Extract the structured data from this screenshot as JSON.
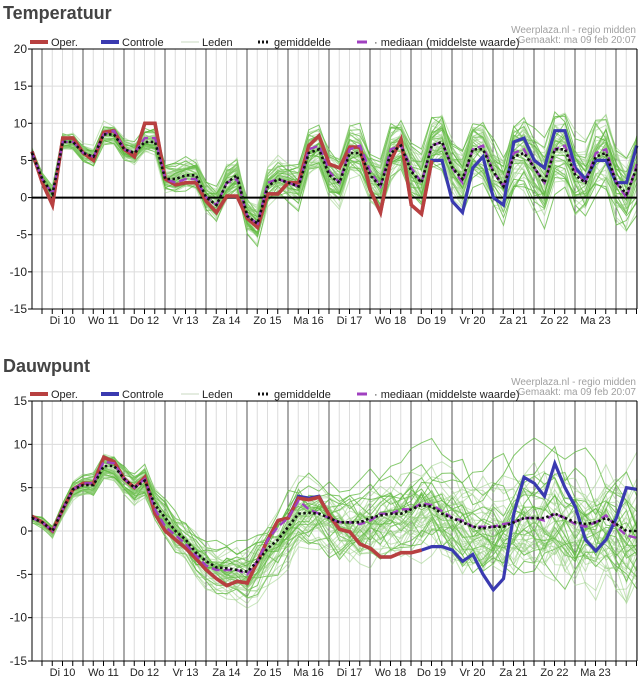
{
  "chart_data": [
    {
      "type": "line",
      "title": "Temperatuur",
      "ylim": [
        -15,
        20
      ],
      "yticks": [
        20,
        15,
        10,
        5,
        0,
        -5,
        -10,
        -15
      ],
      "x_step_hours": 6,
      "x_start": "ma 09 feb 18:00",
      "day_labels": [
        "Di 10",
        "Wo 11",
        "Do 12",
        "Vr 13",
        "Za 14",
        "Zo 15",
        "Ma 16",
        "Di 17",
        "Wo 18",
        "Do 19",
        "Vr 20",
        "Za 21",
        "Zo 22",
        "Ma 23"
      ],
      "grid": true,
      "legend": {
        "placement": "top",
        "items": [
          {
            "key": "oper",
            "label": "Oper.",
            "color": "#b84040",
            "style": "solid-thick"
          },
          {
            "key": "controle",
            "label": "Controle",
            "color": "#3a3ab0",
            "style": "solid-thick"
          },
          {
            "key": "leden",
            "label": "Leden",
            "color": "#c8d8c0",
            "style": "solid-thin"
          },
          {
            "key": "gemiddelde",
            "label": "gemiddelde",
            "color": "#111111",
            "style": "dotted"
          },
          {
            "key": "mediaan",
            "label": "mediaan (middelste waarde)",
            "color": "#a040c0",
            "style": "dashed"
          }
        ]
      },
      "credit": "Weerplaza.nl - regio midden",
      "made": "Gemaakt: ma 09 feb 20:07",
      "series": [
        {
          "name": "Oper.",
          "key": "oper",
          "values": [
            6.2,
            2,
            -1,
            8,
            8,
            6,
            5,
            8.8,
            9,
            6.5,
            5.5,
            10,
            10,
            2.5,
            1.7,
            2,
            2,
            -0.5,
            -2,
            0.2,
            0.2,
            -2.8,
            -4,
            0.5,
            0.5,
            2,
            2,
            7,
            8.3,
            4.5,
            4,
            6.8,
            6.8,
            1,
            -2,
            5,
            7.8,
            -1,
            -2.2,
            5
          ]
        },
        {
          "name": "Controle",
          "key": "controle",
          "values": [
            6.2,
            2,
            -1,
            8,
            8,
            6,
            5,
            8.8,
            9,
            6.5,
            5.5,
            10,
            10,
            2.5,
            1.7,
            2,
            2,
            -0.5,
            -2,
            0.2,
            0.2,
            -2.8,
            -4,
            0.5,
            0.5,
            2,
            2,
            7,
            8.3,
            4.5,
            4,
            6.8,
            6.8,
            1,
            -2,
            5,
            7.8,
            -1,
            -2.2,
            5,
            5,
            -0.5,
            -2,
            4,
            5.5,
            0,
            -1,
            7.5,
            8,
            5,
            4,
            9,
            9,
            4,
            2.5,
            5,
            5,
            2,
            2,
            7
          ]
        },
        {
          "name": "gemiddelde",
          "key": "gemiddelde",
          "values": [
            6,
            2.5,
            0.5,
            7.5,
            7.5,
            6,
            5.5,
            8.5,
            8.5,
            6.5,
            6,
            7.5,
            7.5,
            2.5,
            2.5,
            3,
            3,
            0,
            -1,
            2,
            3,
            -2.5,
            -3.5,
            1.5,
            2.5,
            2,
            1.5,
            6,
            6.5,
            3,
            2,
            6,
            6,
            3,
            1.5,
            6,
            7,
            3.5,
            2,
            7,
            7.5,
            4,
            2.5,
            6.5,
            6.5,
            3.5,
            1.5,
            5.5,
            6,
            4,
            2,
            6.5,
            6.5,
            3,
            2,
            5.5,
            6,
            2,
            0.5,
            4
          ]
        },
        {
          "name": "mediaan",
          "key": "mediaan",
          "values": [
            6,
            2.5,
            0.5,
            7.5,
            7.5,
            6,
            5.5,
            8.5,
            9,
            6.5,
            6,
            8,
            8,
            2.5,
            2,
            2.5,
            2.5,
            0,
            -1,
            2,
            2.5,
            -2.5,
            -3.5,
            2,
            2.5,
            2,
            1.5,
            6.5,
            7,
            3.5,
            2,
            6.5,
            7,
            3.5,
            1.5,
            6.5,
            7,
            4,
            2,
            7,
            7.5,
            4,
            2,
            6.5,
            7,
            3.5,
            1.5,
            6,
            6.5,
            4,
            2,
            6.5,
            7,
            3.5,
            2,
            6,
            6.5,
            2,
            0,
            4.5
          ]
        }
      ],
      "members_count": 50
    },
    {
      "type": "line",
      "title": "Dauwpunt",
      "ylim": [
        -15,
        15
      ],
      "yticks": [
        15,
        10,
        5,
        0,
        -5,
        -10,
        -15
      ],
      "x_step_hours": 6,
      "x_start": "ma 09 feb 18:00",
      "day_labels": [
        "Di 10",
        "Wo 11",
        "Do 12",
        "Vr 13",
        "Za 14",
        "Zo 15",
        "Ma 16",
        "Di 17",
        "Wo 18",
        "Do 19",
        "Vr 20",
        "Za 21",
        "Zo 22",
        "Ma 23"
      ],
      "grid": true,
      "legend": {
        "placement": "top",
        "items": [
          {
            "key": "oper",
            "label": "Oper.",
            "color": "#b84040",
            "style": "solid-thick"
          },
          {
            "key": "controle",
            "label": "Controle",
            "color": "#3a3ab0",
            "style": "solid-thick"
          },
          {
            "key": "leden",
            "label": "Leden",
            "color": "#c8d8c0",
            "style": "solid-thin"
          },
          {
            "key": "gemiddelde",
            "label": "gemiddelde",
            "color": "#111111",
            "style": "dotted"
          },
          {
            "key": "mediaan",
            "label": "mediaan (middelste waarde)",
            "color": "#a040c0",
            "style": "dashed"
          }
        ]
      },
      "credit": "Weerplaza.nl - regio midden",
      "made": "Gemaakt: ma 09 feb 20:07",
      "series": [
        {
          "name": "Oper.",
          "key": "oper",
          "values": [
            1.7,
            1,
            0,
            2.5,
            4.8,
            5.5,
            5.5,
            8.5,
            8,
            6,
            5,
            6.2,
            2,
            0,
            -1,
            -2,
            -3.2,
            -4.5,
            -5.5,
            -6.3,
            -5.8,
            -6,
            -3.5,
            -1,
            1.2,
            1.5,
            3.8,
            3.6,
            3.9,
            1.8,
            0.2,
            -0.1,
            -1.5,
            -2,
            -3,
            -3,
            -2.5,
            -2.5,
            -2.2
          ]
        },
        {
          "name": "Controle",
          "key": "controle",
          "values": [
            1.7,
            1,
            0,
            2.5,
            4.8,
            5.5,
            5.5,
            8.5,
            8,
            6,
            5,
            6.2,
            2,
            0,
            -1,
            -2,
            -3.2,
            -4.5,
            -5.5,
            -6.3,
            -5.8,
            -6,
            -3.5,
            -1,
            1.2,
            1.5,
            4,
            3.8,
            4,
            1.8,
            0.2,
            -0.1,
            -1.5,
            -2,
            -3,
            -3,
            -2.5,
            -2.5,
            -2.2,
            -1.8,
            -1.8,
            -2.2,
            -3.5,
            -2.7,
            -5,
            -6.8,
            -5.5,
            2,
            6.2,
            5.5,
            4,
            7.8,
            5,
            2.8,
            -1,
            -2.3,
            -1,
            1.5,
            5,
            4.8
          ]
        },
        {
          "name": "gemiddelde",
          "key": "gemiddelde",
          "values": [
            1.5,
            1,
            0,
            2.5,
            4.8,
            5.3,
            5.3,
            7.5,
            7.5,
            6,
            5,
            5.8,
            3,
            1.5,
            0,
            -1,
            -2.5,
            -3.5,
            -4.2,
            -4.3,
            -4.5,
            -4.7,
            -3.5,
            -2,
            -1,
            0.5,
            2,
            2.1,
            2,
            1.5,
            1,
            1,
            1,
            1.5,
            1.8,
            2,
            2,
            2.5,
            3,
            2.8,
            2,
            1.5,
            1,
            0.5,
            0.3,
            0.5,
            0.5,
            1,
            1.5,
            1.5,
            1.5,
            2,
            1.5,
            1,
            0.8,
            1,
            1.5,
            0.8,
            0,
            0
          ]
        },
        {
          "name": "mediaan",
          "key": "mediaan",
          "values": [
            1.5,
            1,
            0,
            2.5,
            4.8,
            5.5,
            5.5,
            8,
            7.8,
            6,
            5,
            6,
            2.5,
            0.5,
            -0.5,
            -1.5,
            -2.8,
            -4,
            -4.5,
            -4.5,
            -4.5,
            -5,
            -3.5,
            -1,
            0.5,
            1.5,
            3.5,
            2.5,
            2,
            1.5,
            1,
            1,
            0.8,
            1.2,
            2,
            2,
            2.5,
            2.5,
            3.2,
            3,
            2.3,
            1.5,
            1.2,
            0.5,
            0.5,
            0.5,
            0.8,
            1,
            1.5,
            1.5,
            1.2,
            2,
            1.5,
            0.8,
            0.5,
            1,
            1.8,
            0.5,
            -0.5,
            -0.8
          ]
        }
      ],
      "members_count": 50
    }
  ]
}
